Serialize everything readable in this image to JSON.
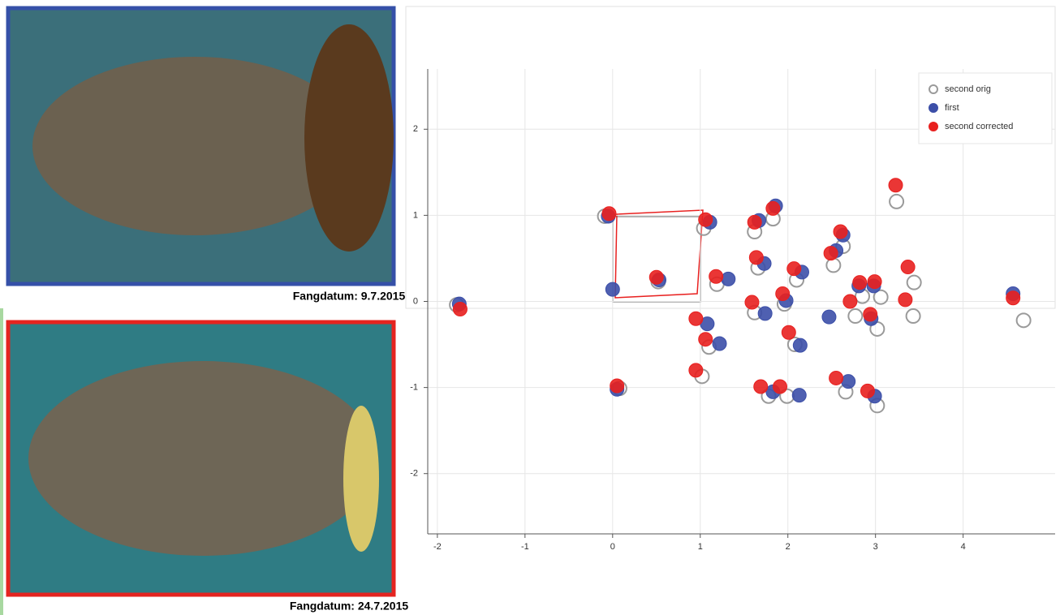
{
  "photos": [
    {
      "caption": "Fangdatum: 9.7.2015"
    },
    {
      "caption": "Fangdatum: 24.7.2015"
    }
  ],
  "chart_data": {
    "type": "scatter",
    "xlim": [
      -2.11,
      5.05
    ],
    "ylim": [
      -2.7,
      2.7
    ],
    "xticks": [
      -2,
      -1,
      0,
      1,
      2,
      3,
      4
    ],
    "yticks": [
      -2,
      -1,
      0,
      1,
      2
    ],
    "grid": true,
    "legend": "top-right",
    "series": [
      {
        "name": "second orig",
        "color": "#9a9a9a",
        "filled": false,
        "x": [
          -1.78,
          -0.09,
          0.52,
          1.04,
          1.62,
          1.83,
          1.66,
          1.19,
          1.96,
          2.1,
          2.52,
          2.63,
          3.24,
          3.44,
          3.06,
          2.77,
          3.02,
          3.43,
          4.69,
          1.62,
          1.1,
          1.02,
          0.08,
          1.78,
          1.99,
          2.08,
          2.66,
          3.02,
          2.85
        ],
        "y": [
          -0.04,
          0.99,
          0.23,
          0.85,
          0.81,
          0.96,
          0.39,
          0.2,
          -0.03,
          0.25,
          0.42,
          0.64,
          1.16,
          0.22,
          0.05,
          -0.17,
          -0.32,
          -0.17,
          -0.22,
          -0.13,
          -0.53,
          -0.87,
          -1.01,
          -1.1,
          -1.1,
          -0.5,
          -1.05,
          -1.21,
          0.06
        ]
      },
      {
        "name": "first",
        "color": "#3c4fa8",
        "filled": true,
        "x": [
          -1.75,
          -0.05,
          0,
          0.53,
          1.11,
          1.67,
          1.86,
          1.73,
          1.32,
          1.74,
          1.98,
          2.16,
          2.55,
          2.63,
          2.81,
          2.98,
          2.95,
          2.47,
          1.08,
          1.22,
          2.14,
          0.05,
          1.83,
          2.13,
          2.69,
          2.99,
          4.57
        ],
        "y": [
          -0.03,
          0.99,
          0.14,
          0.25,
          0.92,
          0.94,
          1.11,
          0.44,
          0.26,
          -0.14,
          0.01,
          0.34,
          0.59,
          0.77,
          0.18,
          0.18,
          -0.2,
          -0.18,
          -0.26,
          -0.49,
          -0.51,
          -1.02,
          -1.05,
          -1.09,
          -0.93,
          -1.1,
          0.09
        ]
      },
      {
        "name": "second corrected",
        "color": "#e8201f",
        "filled": true,
        "x": [
          -1.74,
          -0.04,
          0.5,
          1.06,
          1.62,
          1.83,
          1.64,
          1.18,
          1.59,
          1.94,
          2.07,
          2.01,
          2.49,
          2.6,
          2.82,
          2.99,
          2.71,
          2.94,
          3.23,
          3.37,
          3.34,
          0.95,
          1.06,
          0.95,
          0.05,
          1.69,
          1.91,
          2.55,
          2.91,
          4.57
        ],
        "y": [
          -0.09,
          1.02,
          0.28,
          0.95,
          0.92,
          1.08,
          0.51,
          0.29,
          -0.01,
          0.09,
          0.38,
          -0.36,
          0.56,
          0.81,
          0.22,
          0.23,
          0,
          -0.15,
          1.35,
          0.4,
          0.02,
          -0.2,
          -0.44,
          -0.8,
          -0.98,
          -0.99,
          -0.99,
          -0.89,
          -1.04,
          0.04
        ]
      }
    ]
  }
}
